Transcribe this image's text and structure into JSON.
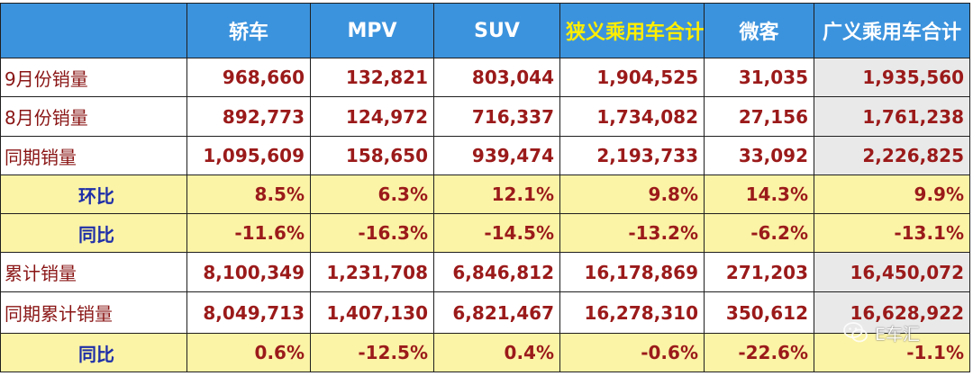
{
  "headers": [
    "",
    "轿车",
    "MPV",
    "SUV",
    "狭义乘用车合计",
    "微客",
    "广义乘用车合计"
  ],
  "rows": [
    {
      "label": "9月份销量",
      "type": "value",
      "cells": [
        "968,660",
        "132,821",
        "803,044",
        "1,904,525",
        "31,035",
        "1,935,560"
      ]
    },
    {
      "label": "8月份销量",
      "type": "value",
      "cells": [
        "892,773",
        "124,972",
        "716,337",
        "1,734,082",
        "27,156",
        "1,761,238"
      ]
    },
    {
      "label": "同期销量",
      "type": "value",
      "cells": [
        "1,095,609",
        "158,650",
        "939,474",
        "2,193,733",
        "33,092",
        "2,226,825"
      ]
    },
    {
      "label": "环比",
      "type": "ratio",
      "cells": [
        "8.5%",
        "6.3%",
        "12.1%",
        "9.8%",
        "14.3%",
        "9.9%"
      ]
    },
    {
      "label": "同比",
      "type": "ratio",
      "cells": [
        "-11.6%",
        "-16.3%",
        "-14.5%",
        "-13.2%",
        "-6.2%",
        "-13.1%"
      ]
    },
    {
      "label": "累计销量",
      "type": "value",
      "cells": [
        "8,100,349",
        "1,231,708",
        "6,846,812",
        "16,178,869",
        "271,203",
        "16,450,072"
      ]
    },
    {
      "label": "同期累计销量",
      "type": "value",
      "cells": [
        "8,049,713",
        "1,407,130",
        "6,821,467",
        "16,278,310",
        "350,612",
        "16,628,922"
      ]
    },
    {
      "label": "同比",
      "type": "ratio",
      "cells": [
        "0.6%",
        "-12.5%",
        "0.4%",
        "-0.6%",
        "-22.6%",
        "-1.1%"
      ]
    }
  ],
  "watermark": {
    "text": "E车汇",
    "icon": "wechat-icon"
  },
  "colors": {
    "header_bg": "#3c93dd",
    "header_text": "#ffffff",
    "header_accent": "#ffee00",
    "value_text": "#9b1a1a",
    "ratio_bg": "#fbf3a6",
    "ratio_label": "#1f2fa8",
    "wide_col_bg": "#e9e9e9"
  }
}
